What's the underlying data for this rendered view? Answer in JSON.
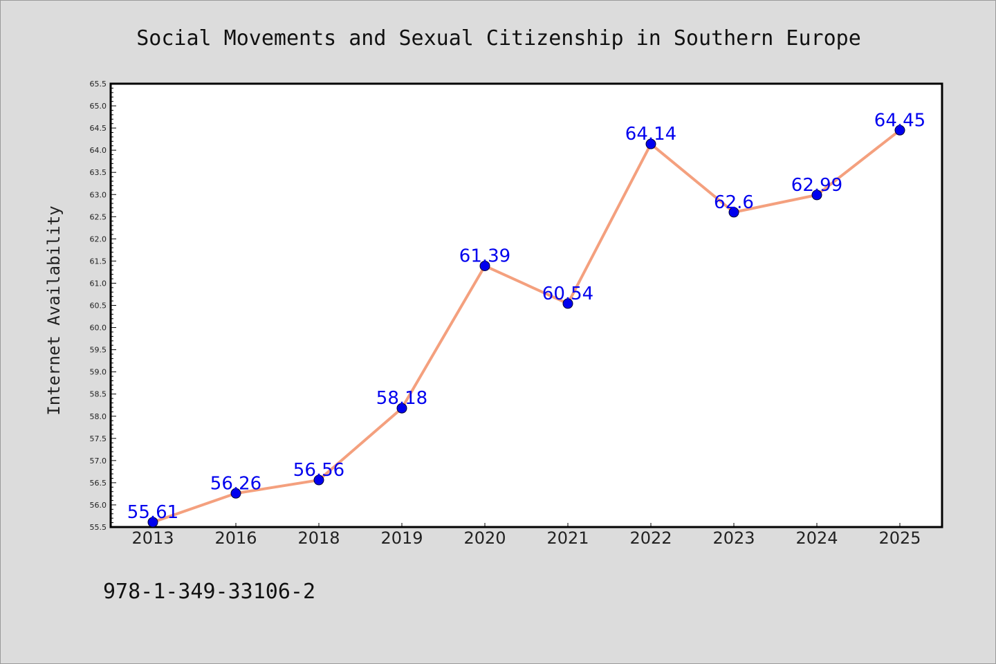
{
  "chart_data": {
    "type": "line",
    "title": "Social Movements and Sexual Citizenship in Southern Europe",
    "xlabel": "",
    "ylabel": "Internet Availability",
    "categories": [
      "2013",
      "2016",
      "2018",
      "2019",
      "2020",
      "2021",
      "2022",
      "2023",
      "2024",
      "2025"
    ],
    "values": [
      55.61,
      56.26,
      56.56,
      58.18,
      61.39,
      60.54,
      64.14,
      62.6,
      62.99,
      64.45
    ],
    "data_labels": [
      "55.61",
      "56.26",
      "56.56",
      "58.18",
      "61.39",
      "60.54",
      "64.14",
      "62.6",
      "62.99",
      "64.45"
    ],
    "ylim": [
      55.5,
      65.5
    ],
    "y_ticks": [
      "55.5",
      "56.0",
      "56.5",
      "57.0",
      "57.5",
      "58.0",
      "58.5",
      "59.0",
      "59.5",
      "60.0",
      "60.5",
      "61.0",
      "61.5",
      "62.0",
      "62.5",
      "63.0",
      "63.5",
      "64.0",
      "64.5",
      "65.0",
      "65.5"
    ],
    "y_tick_values": [
      55.5,
      56.0,
      56.5,
      57.0,
      57.5,
      58.0,
      58.5,
      59.0,
      59.5,
      60.0,
      60.5,
      61.0,
      61.5,
      62.0,
      62.5,
      63.0,
      63.5,
      64.0,
      64.5,
      65.0,
      65.5
    ],
    "y_minor_step": 0.1,
    "grid": false,
    "legend": "none",
    "colors": {
      "line": "#f4a07e",
      "marker": "#0000ee",
      "marker_edge": "#000033",
      "label": "#0000ee",
      "background": "#dcdcdc",
      "plot_background": "#ffffff",
      "axes": "#000000"
    },
    "footer_text": "978-1-349-33106-2"
  }
}
